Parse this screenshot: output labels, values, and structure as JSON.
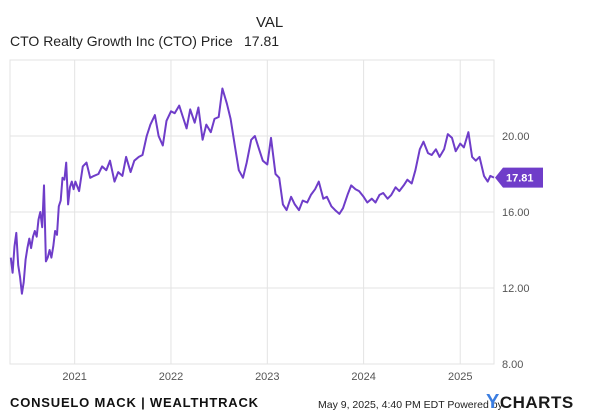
{
  "legend": {
    "column_header": "VAL",
    "series_name": "CTO Realty Growth Inc (CTO) Price",
    "series_value": "17.81"
  },
  "footer": {
    "brand": "CONSUELO MACK | WEALTHTRACK",
    "timestamp": "May 9, 2025, 4:40 PM EDT Powered by",
    "logo_text": "CHARTS",
    "logo_mark": "Y"
  },
  "colors": {
    "series": "#6f3dc9",
    "grid": "#e3e3e3",
    "axis_text": "#555555"
  },
  "chart_data": {
    "type": "line",
    "title": "",
    "xlabel": "",
    "ylabel": "",
    "ylim": [
      8,
      24
    ],
    "yticks": [
      8,
      12,
      16,
      20
    ],
    "ytick_labels": [
      "8.00",
      "12.00",
      "16.00",
      "20.00"
    ],
    "xlim": [
      "2020-05-01",
      "2025-05-09"
    ],
    "xticks": [
      "2021-01-01",
      "2022-01-01",
      "2023-01-01",
      "2024-01-01",
      "2025-01-01"
    ],
    "xtick_labels": [
      "2021",
      "2022",
      "2023",
      "2024",
      "2025"
    ],
    "last_value_label": "17.81",
    "grid": true,
    "series": [
      {
        "name": "CTO Realty Growth Inc (CTO) Price",
        "color": "#6f3dc9",
        "points": [
          [
            "2020-05-04",
            13.6
          ],
          [
            "2020-05-11",
            12.8
          ],
          [
            "2020-05-18",
            14.2
          ],
          [
            "2020-05-25",
            14.9
          ],
          [
            "2020-06-01",
            13.2
          ],
          [
            "2020-06-08",
            12.6
          ],
          [
            "2020-06-15",
            11.7
          ],
          [
            "2020-06-22",
            12.3
          ],
          [
            "2020-06-29",
            13.5
          ],
          [
            "2020-07-06",
            14.1
          ],
          [
            "2020-07-13",
            14.6
          ],
          [
            "2020-07-20",
            14.1
          ],
          [
            "2020-07-27",
            14.7
          ],
          [
            "2020-08-03",
            15.0
          ],
          [
            "2020-08-10",
            14.7
          ],
          [
            "2020-08-17",
            15.6
          ],
          [
            "2020-08-24",
            16.0
          ],
          [
            "2020-08-31",
            15.2
          ],
          [
            "2020-09-07",
            17.4
          ],
          [
            "2020-09-14",
            13.4
          ],
          [
            "2020-09-21",
            13.6
          ],
          [
            "2020-09-28",
            14.0
          ],
          [
            "2020-10-05",
            13.6
          ],
          [
            "2020-10-12",
            14.2
          ],
          [
            "2020-10-19",
            15.0
          ],
          [
            "2020-10-26",
            14.8
          ],
          [
            "2020-11-02",
            16.3
          ],
          [
            "2020-11-09",
            16.6
          ],
          [
            "2020-11-16",
            17.8
          ],
          [
            "2020-11-23",
            17.7
          ],
          [
            "2020-11-30",
            18.6
          ],
          [
            "2020-12-07",
            16.4
          ],
          [
            "2020-12-14",
            17.3
          ],
          [
            "2020-12-21",
            17.6
          ],
          [
            "2020-12-28",
            17.2
          ],
          [
            "2021-01-04",
            17.6
          ],
          [
            "2021-01-18",
            17.1
          ],
          [
            "2021-02-01",
            18.4
          ],
          [
            "2021-02-15",
            18.6
          ],
          [
            "2021-03-01",
            17.8
          ],
          [
            "2021-03-15",
            17.9
          ],
          [
            "2021-04-01",
            18.0
          ],
          [
            "2021-04-15",
            18.4
          ],
          [
            "2021-05-01",
            18.2
          ],
          [
            "2021-05-15",
            18.7
          ],
          [
            "2021-06-01",
            17.6
          ],
          [
            "2021-06-15",
            18.1
          ],
          [
            "2021-07-01",
            17.9
          ],
          [
            "2021-07-15",
            18.9
          ],
          [
            "2021-08-01",
            18.1
          ],
          [
            "2021-08-15",
            18.7
          ],
          [
            "2021-09-01",
            18.9
          ],
          [
            "2021-09-15",
            19.0
          ],
          [
            "2021-10-01",
            20.0
          ],
          [
            "2021-10-15",
            20.6
          ],
          [
            "2021-11-01",
            21.1
          ],
          [
            "2021-11-15",
            20.0
          ],
          [
            "2021-12-01",
            19.5
          ],
          [
            "2021-12-15",
            20.8
          ],
          [
            "2022-01-01",
            21.3
          ],
          [
            "2022-01-15",
            21.2
          ],
          [
            "2022-02-01",
            21.6
          ],
          [
            "2022-02-15",
            21.0
          ],
          [
            "2022-03-01",
            20.4
          ],
          [
            "2022-03-15",
            21.4
          ],
          [
            "2022-04-01",
            20.7
          ],
          [
            "2022-04-15",
            21.5
          ],
          [
            "2022-05-01",
            19.8
          ],
          [
            "2022-05-15",
            20.6
          ],
          [
            "2022-06-01",
            20.2
          ],
          [
            "2022-06-15",
            20.9
          ],
          [
            "2022-07-01",
            21.0
          ],
          [
            "2022-07-15",
            22.5
          ],
          [
            "2022-08-01",
            21.7
          ],
          [
            "2022-08-15",
            20.9
          ],
          [
            "2022-09-01",
            19.4
          ],
          [
            "2022-09-15",
            18.2
          ],
          [
            "2022-10-01",
            17.8
          ],
          [
            "2022-10-15",
            18.6
          ],
          [
            "2022-11-01",
            19.8
          ],
          [
            "2022-11-15",
            20.0
          ],
          [
            "2022-12-01",
            19.3
          ],
          [
            "2022-12-15",
            18.7
          ],
          [
            "2023-01-01",
            18.5
          ],
          [
            "2023-01-15",
            19.9
          ],
          [
            "2023-02-01",
            18.0
          ],
          [
            "2023-02-15",
            17.8
          ],
          [
            "2023-03-01",
            16.4
          ],
          [
            "2023-03-15",
            16.1
          ],
          [
            "2023-04-01",
            16.8
          ],
          [
            "2023-04-15",
            16.4
          ],
          [
            "2023-05-01",
            16.1
          ],
          [
            "2023-05-15",
            16.6
          ],
          [
            "2023-06-01",
            16.5
          ],
          [
            "2023-06-15",
            16.9
          ],
          [
            "2023-07-01",
            17.2
          ],
          [
            "2023-07-15",
            17.6
          ],
          [
            "2023-08-01",
            16.7
          ],
          [
            "2023-08-15",
            16.8
          ],
          [
            "2023-09-01",
            16.3
          ],
          [
            "2023-09-15",
            16.1
          ],
          [
            "2023-10-01",
            15.9
          ],
          [
            "2023-10-15",
            16.2
          ],
          [
            "2023-11-01",
            16.9
          ],
          [
            "2023-11-15",
            17.4
          ],
          [
            "2023-12-01",
            17.2
          ],
          [
            "2023-12-15",
            17.1
          ],
          [
            "2024-01-01",
            16.8
          ],
          [
            "2024-01-15",
            16.5
          ],
          [
            "2024-02-01",
            16.7
          ],
          [
            "2024-02-15",
            16.5
          ],
          [
            "2024-03-01",
            16.9
          ],
          [
            "2024-03-15",
            17.0
          ],
          [
            "2024-04-01",
            16.7
          ],
          [
            "2024-04-15",
            16.9
          ],
          [
            "2024-05-01",
            17.3
          ],
          [
            "2024-05-15",
            17.1
          ],
          [
            "2024-06-01",
            17.4
          ],
          [
            "2024-06-15",
            17.7
          ],
          [
            "2024-07-01",
            17.5
          ],
          [
            "2024-07-15",
            18.2
          ],
          [
            "2024-08-01",
            19.3
          ],
          [
            "2024-08-15",
            19.7
          ],
          [
            "2024-09-01",
            19.1
          ],
          [
            "2024-09-15",
            19.0
          ],
          [
            "2024-10-01",
            19.3
          ],
          [
            "2024-10-15",
            18.9
          ],
          [
            "2024-11-01",
            19.3
          ],
          [
            "2024-11-15",
            20.1
          ],
          [
            "2024-12-01",
            19.9
          ],
          [
            "2024-12-15",
            19.2
          ],
          [
            "2025-01-01",
            19.6
          ],
          [
            "2025-01-15",
            19.4
          ],
          [
            "2025-02-01",
            20.2
          ],
          [
            "2025-02-15",
            18.9
          ],
          [
            "2025-03-01",
            18.7
          ],
          [
            "2025-03-15",
            18.9
          ],
          [
            "2025-04-01",
            17.9
          ],
          [
            "2025-04-15",
            17.6
          ],
          [
            "2025-04-25",
            17.9
          ],
          [
            "2025-05-09",
            17.81
          ]
        ]
      }
    ]
  }
}
